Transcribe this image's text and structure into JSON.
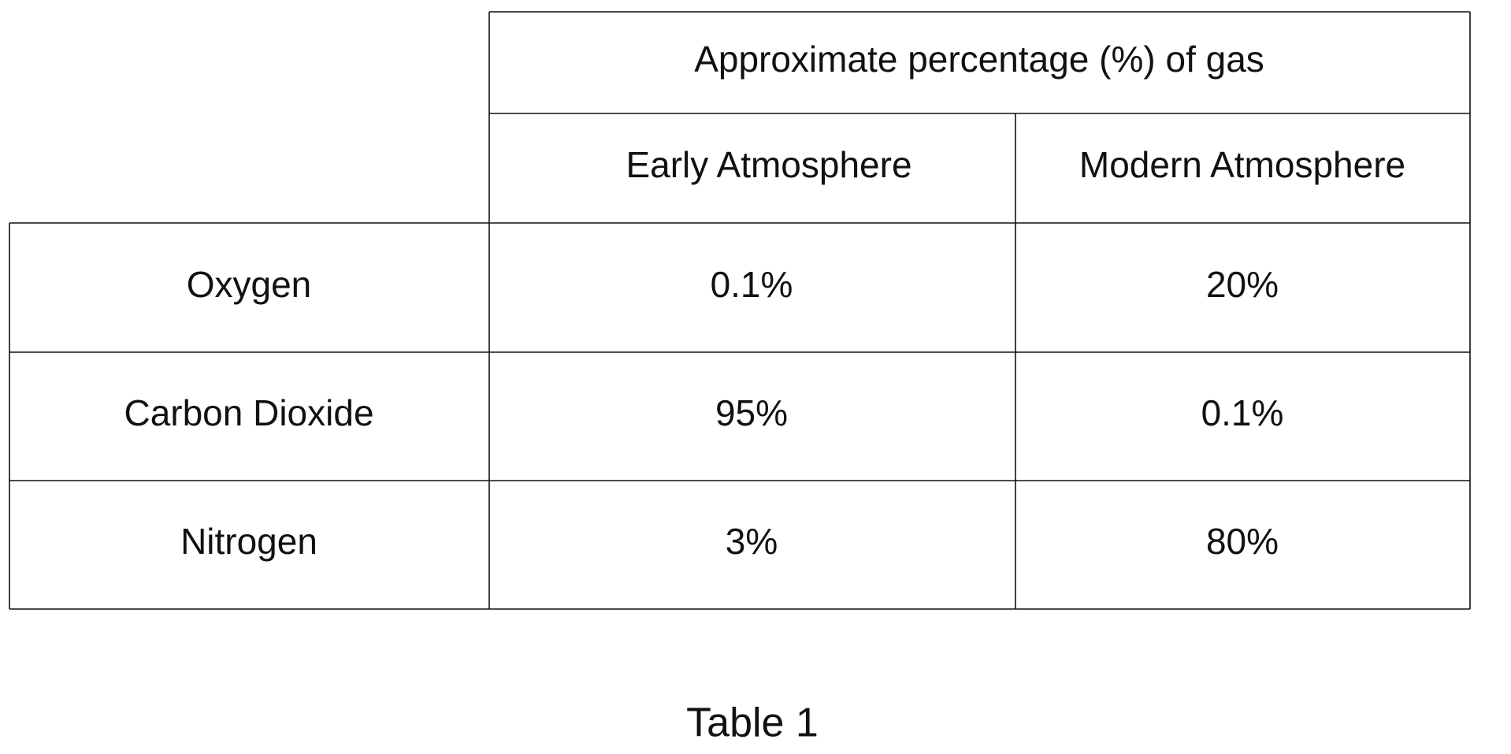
{
  "table": {
    "header": "Approximate percentage (%) of gas",
    "columns": [
      "Early Atmosphere",
      "Modern Atmosphere"
    ],
    "rows": [
      [
        "Oxygen",
        "0.1%",
        "20%"
      ],
      [
        "Carbon Dioxide",
        "95%",
        "0.1%"
      ],
      [
        "Nitrogen",
        "3%",
        "80%"
      ]
    ]
  },
  "caption": "Table 1"
}
